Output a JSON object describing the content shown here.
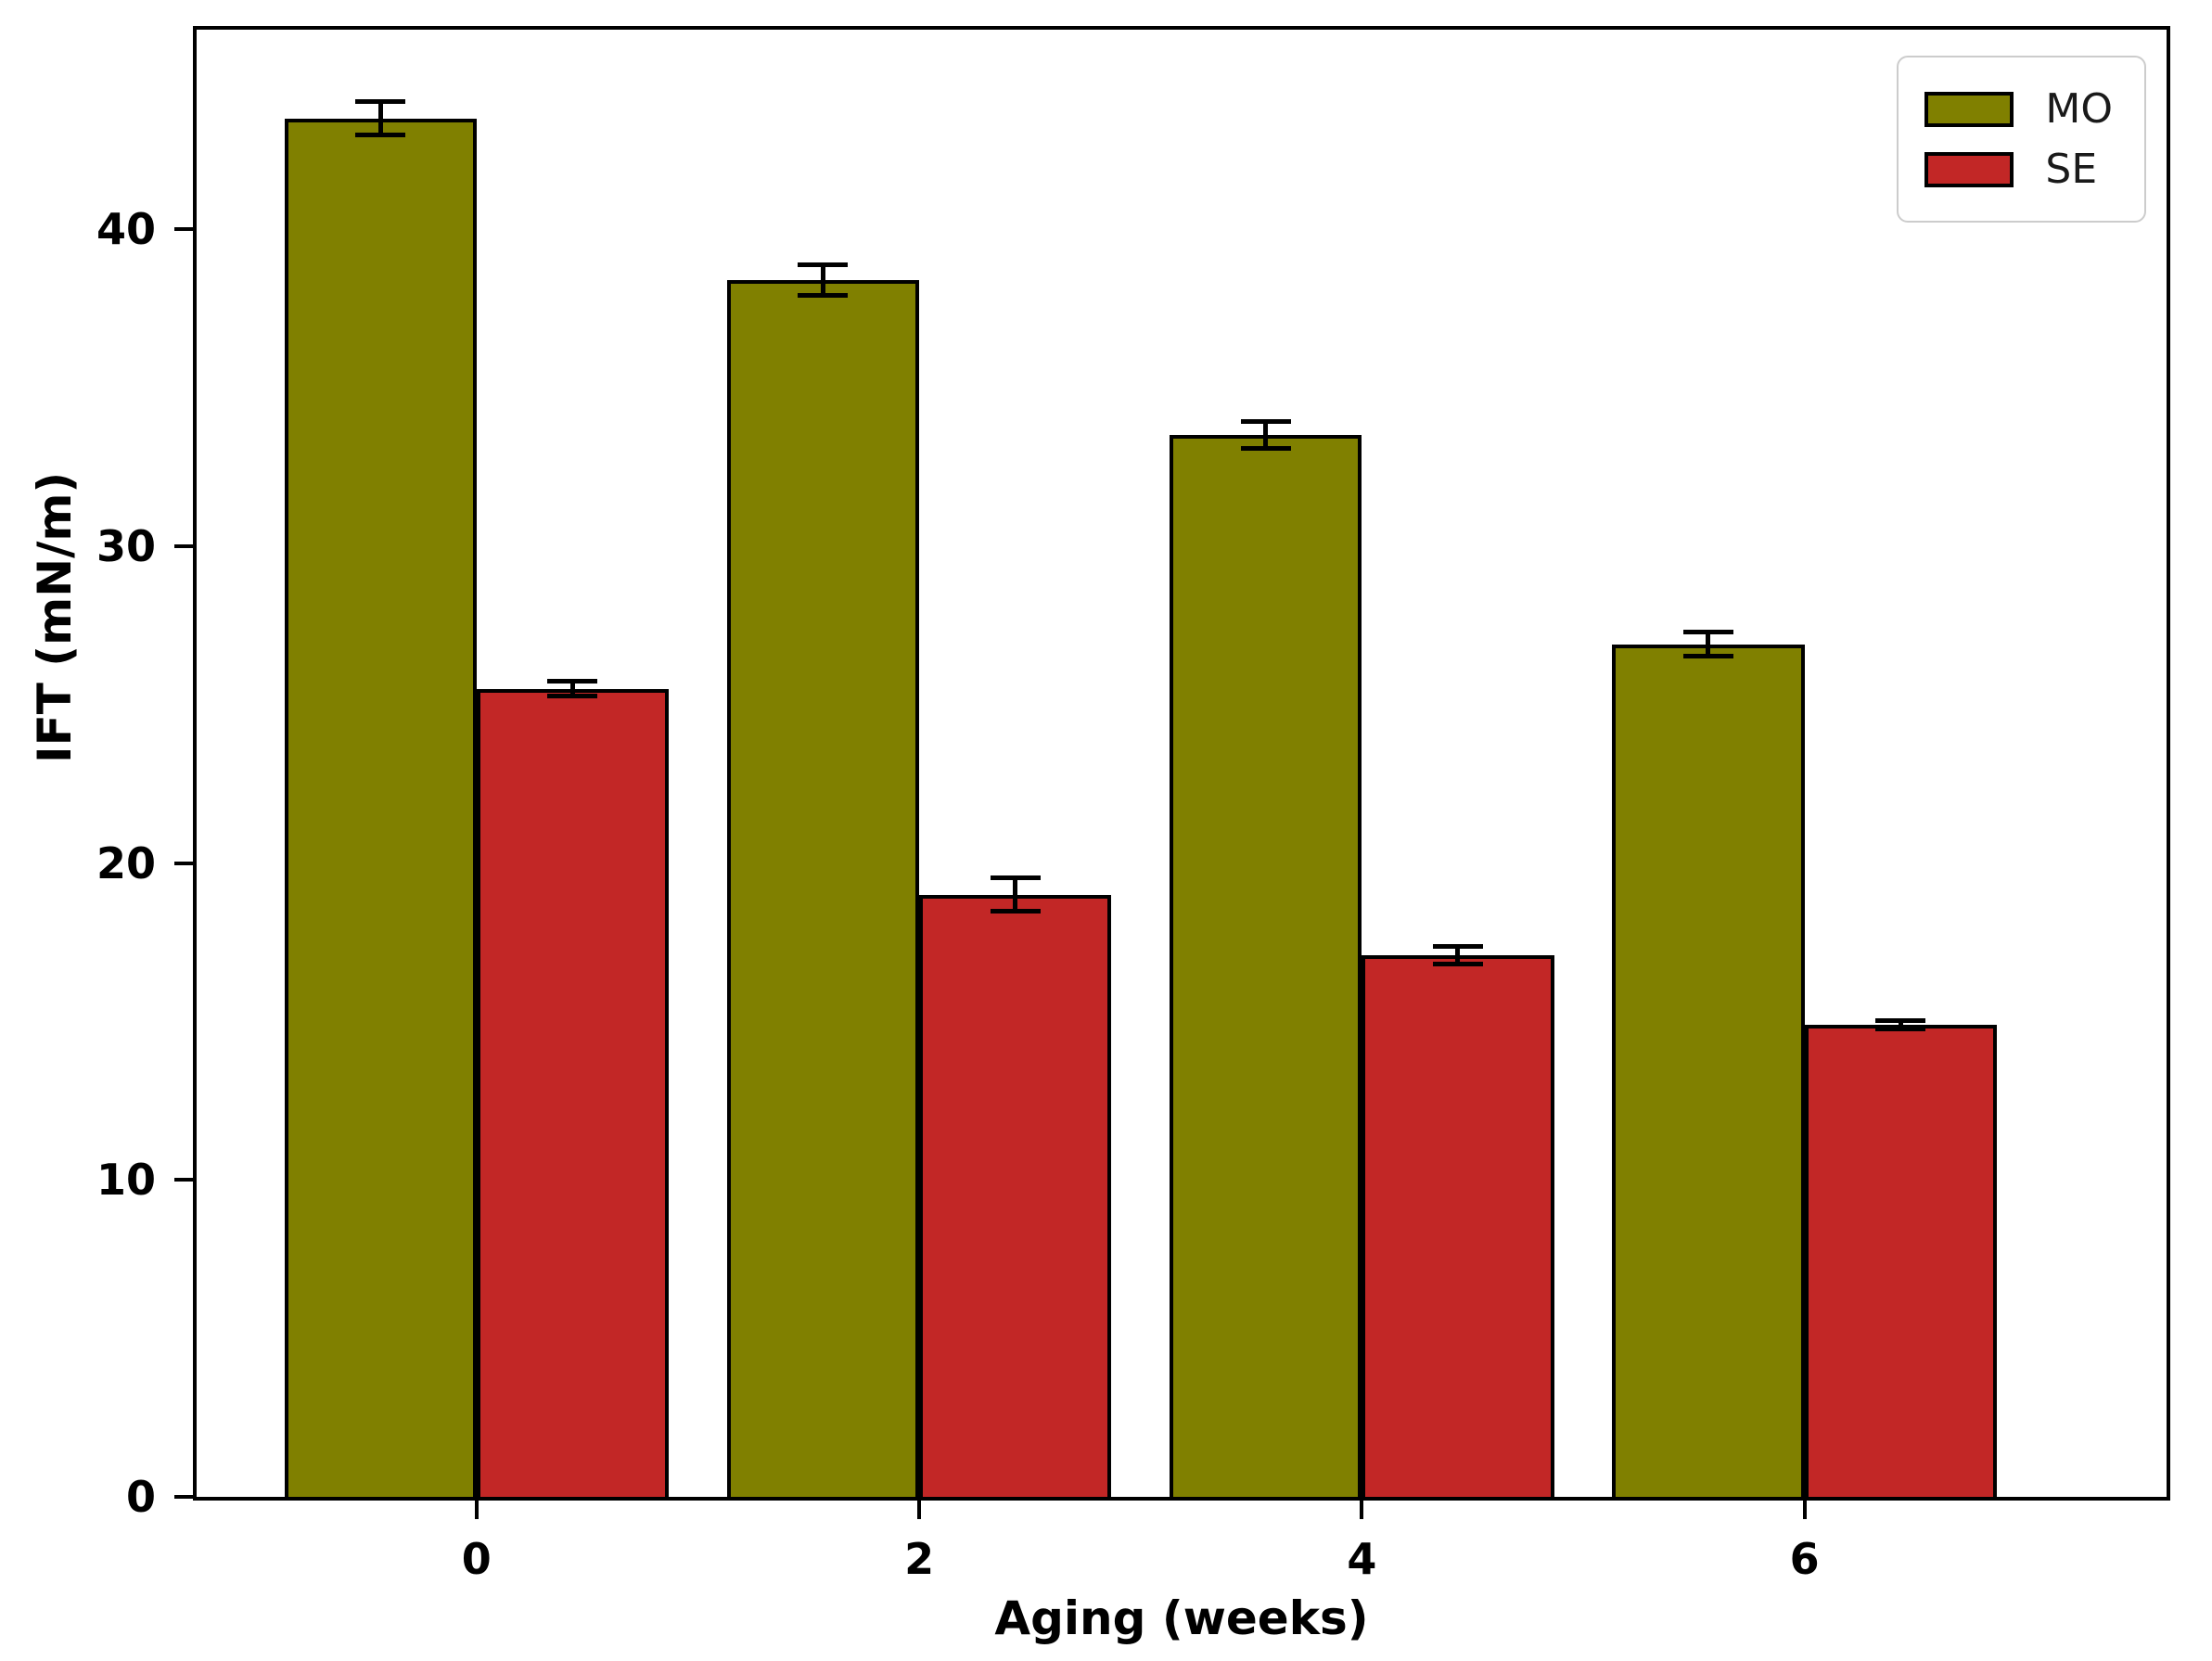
{
  "chart_data": {
    "type": "bar",
    "title": "",
    "xlabel": "Aging (weeks)",
    "ylabel": "IFT (mN/m)",
    "categories": [
      "0",
      "2",
      "4",
      "6"
    ],
    "series": [
      {
        "name": "MO",
        "color": "#808000",
        "values": [
          43.5,
          38.4,
          33.5,
          26.9
        ],
        "errors": [
          0.6,
          0.55,
          0.5,
          0.45
        ]
      },
      {
        "name": "SE",
        "color": "#c22726",
        "values": [
          25.5,
          19.0,
          17.1,
          14.9
        ],
        "errors": [
          0.3,
          0.6,
          0.35,
          0.2
        ]
      }
    ],
    "ylim": [
      0,
      46.3
    ],
    "yticks": [
      0,
      10,
      20,
      30,
      40
    ],
    "grid": false,
    "legend_position": "upper right",
    "bar_edge_color": "#000000",
    "error_bar_color": "#000000",
    "spine_color": "#000000",
    "background_color": "#ffffff"
  },
  "legend": {
    "items": [
      {
        "label": "MO",
        "color": "#808000"
      },
      {
        "label": "SE",
        "color": "#c22726"
      }
    ]
  }
}
